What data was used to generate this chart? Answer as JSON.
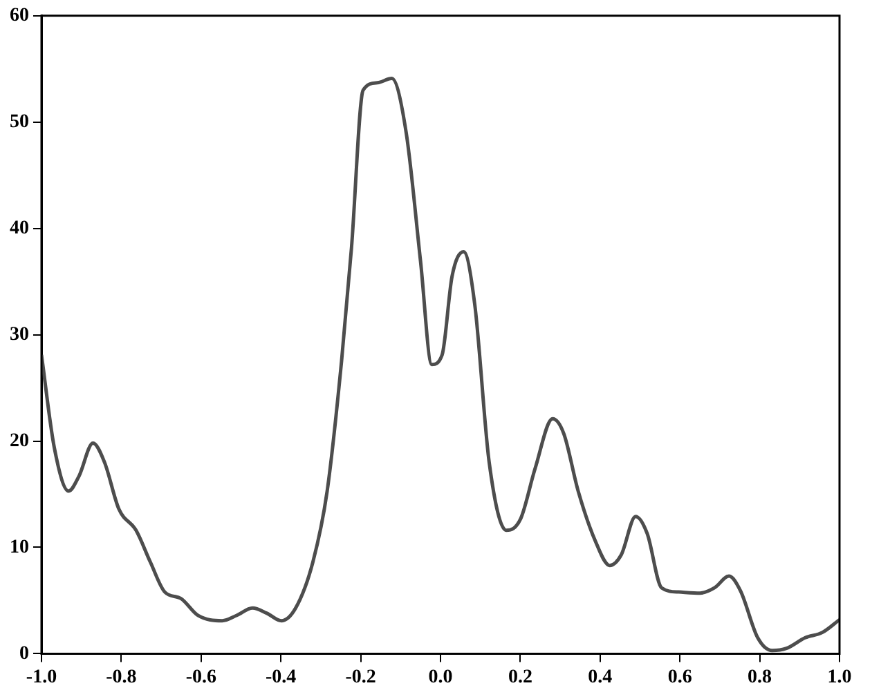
{
  "chart_data": {
    "type": "line",
    "x": [
      -1,
      -0.968,
      -0.932,
      -0.906,
      -0.871,
      -0.842,
      -0.806,
      -0.763,
      -0.727,
      -0.691,
      -0.651,
      -0.608,
      -0.547,
      -0.511,
      -0.471,
      -0.435,
      -0.399,
      -0.363,
      -0.32,
      -0.284,
      -0.248,
      -0.223,
      -0.194,
      -0.158,
      -0.122,
      -0.086,
      -0.05,
      -0.022,
      0.004,
      0.029,
      0.058,
      0.086,
      0.122,
      0.165,
      0.201,
      0.237,
      0.281,
      0.309,
      0.345,
      0.388,
      0.424,
      0.453,
      0.489,
      0.518,
      0.554,
      0.597,
      0.651,
      0.687,
      0.723,
      0.752,
      0.795,
      0.831,
      0.867,
      0.914,
      0.957,
      1
    ],
    "series": [
      {
        "color": "#4d4d4d",
        "values": [
          28.1,
          19.4,
          15.3,
          16.7,
          19.8,
          18,
          13.6,
          11.6,
          8.6,
          5.8,
          5.2,
          3.6,
          3.1,
          3.6,
          4.3,
          3.8,
          3.1,
          4.3,
          8.6,
          15.3,
          27.5,
          38.2,
          53,
          53.7,
          54.1,
          49,
          36.9,
          27.2,
          28.1,
          35.5,
          37.8,
          32.8,
          18,
          11.6,
          12.7,
          17.4,
          22.1,
          20.7,
          15.3,
          10.6,
          8.3,
          9.3,
          12.9,
          11.3,
          6.2,
          5.8,
          5.7,
          6.2,
          7.3,
          5.9,
          1.5,
          0.3,
          0.5,
          1.5,
          2,
          3.2
        ]
      }
    ],
    "xlim": [
      -1,
      1
    ],
    "xticks": [
      {
        "value": -1,
        "label": "-1.0"
      },
      -0.8,
      -0.6,
      -0.4,
      -0.2,
      {
        "value": 0,
        "label": "0.0"
      },
      0.2,
      0.4,
      0.6,
      0.8,
      {
        "value": 1,
        "label": "1.0"
      }
    ],
    "ylim": [
      0,
      60
    ],
    "yticks": [
      0,
      10,
      20,
      30,
      40,
      50,
      60
    ],
    "grid": false,
    "legend": false,
    "marker": "none",
    "line_style": "solid"
  }
}
